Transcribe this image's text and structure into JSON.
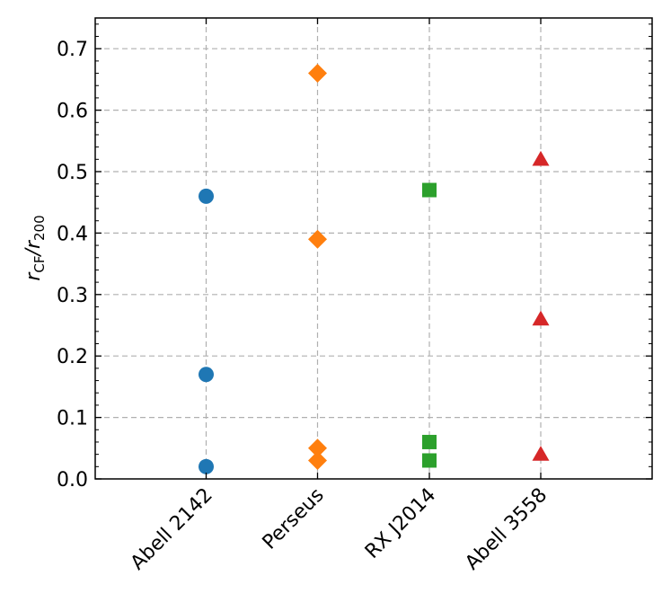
{
  "chart_data": {
    "type": "scatter",
    "categories": [
      "Abell 2142",
      "Perseus",
      "RX J2014",
      "Abell 3558"
    ],
    "series": [
      {
        "category": "Abell 2142",
        "marker": "circle",
        "color": "#1f77b4",
        "values": [
          0.46,
          0.17,
          0.02
        ]
      },
      {
        "category": "Perseus",
        "marker": "diamond",
        "color": "#ff7f0e",
        "values": [
          0.66,
          0.39,
          0.05,
          0.03
        ]
      },
      {
        "category": "RX J2014",
        "marker": "square",
        "color": "#2ca02c",
        "values": [
          0.47,
          0.06,
          0.03
        ]
      },
      {
        "category": "Abell 3558",
        "marker": "triangle",
        "color": "#d62728",
        "values": [
          0.52,
          0.26,
          0.04
        ]
      }
    ],
    "ylabel": "r_CF/r_200",
    "ylabel_main": "r",
    "ylabel_sub1": "CF",
    "ylabel_sep": "/r",
    "ylabel_sub2": "200",
    "ylim": [
      0,
      0.75
    ],
    "yticks": [
      0.0,
      0.1,
      0.2,
      0.3,
      0.4,
      0.5,
      0.6,
      0.7
    ],
    "ytick_labels": [
      "0.0",
      "0.1",
      "0.2",
      "0.3",
      "0.4",
      "0.5",
      "0.6",
      "0.7"
    ],
    "grid": true
  }
}
